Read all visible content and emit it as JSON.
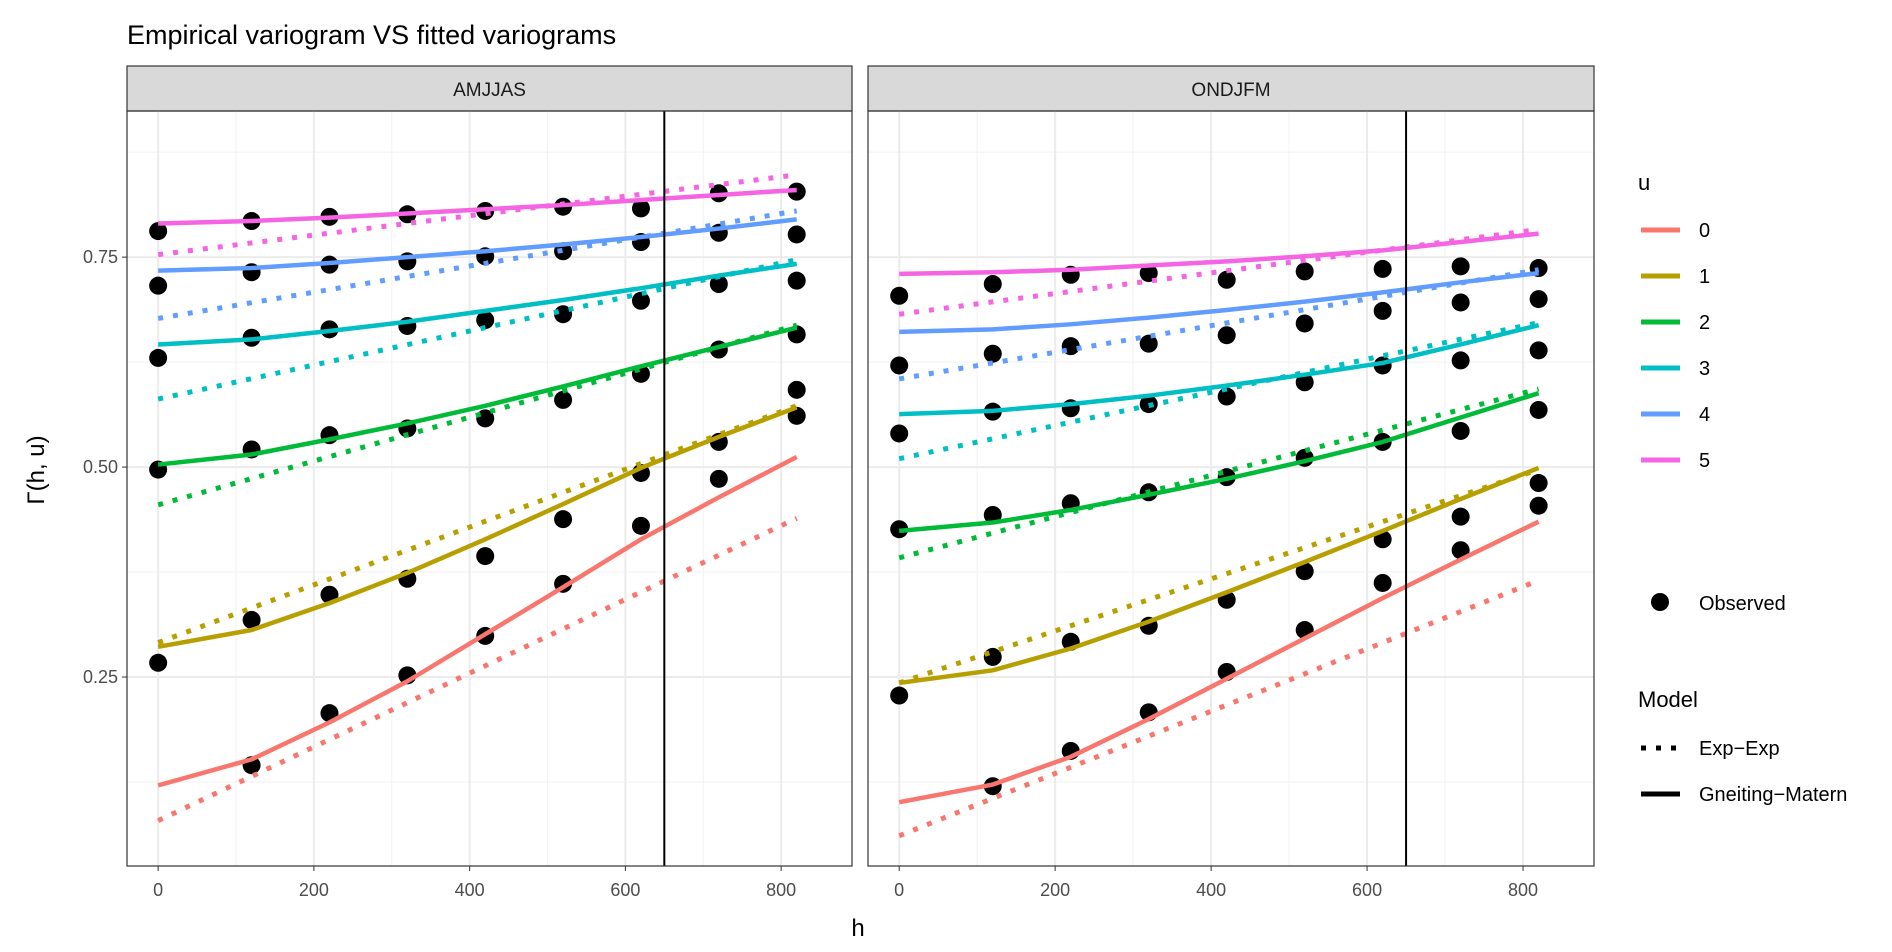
{
  "chart_data": {
    "type": "line",
    "title": "Empirical variogram VS fitted variograms",
    "xlabel": "h",
    "ylabel": "Γ(h, u)",
    "xlim": [
      -40,
      891
    ],
    "ylim": [
      0.025,
      0.924
    ],
    "x_ticks": [
      0,
      200,
      400,
      600,
      800
    ],
    "y_ticks": [
      0.25,
      0.5,
      0.75
    ],
    "y_tick_labels": [
      "0.25",
      "0.50",
      "0.75"
    ],
    "x_tick_labels": [
      "0",
      "200",
      "400",
      "600",
      "800"
    ],
    "grid": true,
    "vertical_reference_line": 650,
    "x": [
      0,
      120,
      220,
      320,
      420,
      520,
      620,
      720,
      820
    ],
    "legend": {
      "placement": "right",
      "color_title": "u",
      "u_levels": [
        "0",
        "1",
        "2",
        "3",
        "4",
        "5"
      ],
      "colors": [
        "#F8766D",
        "#B79F00",
        "#00BA38",
        "#00BFC4",
        "#619CFF",
        "#F564E3"
      ],
      "observed_label": "Observed",
      "model_title": "Model",
      "models": [
        "Exp−Exp",
        "Gneiting−Matern"
      ]
    },
    "panels": [
      {
        "name": "AMJJAS",
        "observed": [
          [
            null,
            0.145,
            0.207,
            0.252,
            0.299,
            0.361,
            0.43,
            0.486,
            0.561
          ],
          [
            0.267,
            0.318,
            0.348,
            0.367,
            0.394,
            0.438,
            0.493,
            0.53,
            0.592
          ],
          [
            0.497,
            0.521,
            0.538,
            0.546,
            0.558,
            0.58,
            0.611,
            0.64,
            0.658
          ],
          [
            0.63,
            0.654,
            0.664,
            0.668,
            0.675,
            0.682,
            0.698,
            0.718,
            0.722
          ],
          [
            0.716,
            0.732,
            0.741,
            0.745,
            0.751,
            0.757,
            0.768,
            0.779,
            0.777
          ],
          [
            0.781,
            0.793,
            0.798,
            0.801,
            0.805,
            0.81,
            0.808,
            0.826,
            0.828
          ]
        ],
        "gneiting_matern": [
          [
            0.121,
            0.152,
            0.196,
            0.245,
            0.301,
            0.357,
            0.414,
            0.464,
            0.512
          ],
          [
            0.286,
            0.306,
            0.338,
            0.374,
            0.414,
            0.456,
            0.499,
            0.536,
            0.571
          ],
          [
            0.503,
            0.515,
            0.533,
            0.552,
            0.573,
            0.596,
            0.62,
            0.643,
            0.666
          ],
          [
            0.646,
            0.652,
            0.662,
            0.673,
            0.686,
            0.699,
            0.713,
            0.728,
            0.742
          ],
          [
            0.734,
            0.737,
            0.743,
            0.75,
            0.757,
            0.765,
            0.774,
            0.784,
            0.795
          ],
          [
            0.79,
            0.793,
            0.797,
            0.802,
            0.807,
            0.812,
            0.818,
            0.824,
            0.83
          ]
        ],
        "exp_exp_x": [
          0,
          820
        ],
        "exp_exp": [
          [
            0.079,
            0.439
          ],
          [
            0.291,
            0.573
          ],
          [
            0.455,
            0.669
          ],
          [
            0.581,
            0.747
          ],
          [
            0.677,
            0.805
          ],
          [
            0.753,
            0.848
          ]
        ]
      },
      {
        "name": "ONDJFM",
        "observed": [
          [
            null,
            0.12,
            0.162,
            0.208,
            0.256,
            0.306,
            0.362,
            0.401,
            0.454
          ],
          [
            0.228,
            0.274,
            0.292,
            0.311,
            0.342,
            0.376,
            0.414,
            0.441,
            0.481
          ],
          [
            0.426,
            0.443,
            0.457,
            0.47,
            0.488,
            0.511,
            0.53,
            0.543,
            0.568
          ],
          [
            0.54,
            0.566,
            0.57,
            0.575,
            0.584,
            0.601,
            0.621,
            0.627,
            0.639
          ],
          [
            0.621,
            0.635,
            0.644,
            0.647,
            0.657,
            0.671,
            0.686,
            0.696,
            0.7
          ],
          [
            0.704,
            0.718,
            0.729,
            0.731,
            0.723,
            0.733,
            0.736,
            0.739,
            0.737
          ]
        ],
        "gneiting_matern": [
          [
            0.101,
            0.122,
            0.155,
            0.2,
            0.248,
            0.296,
            0.344,
            0.39,
            0.435
          ],
          [
            0.243,
            0.258,
            0.284,
            0.316,
            0.351,
            0.387,
            0.424,
            0.462,
            0.499
          ],
          [
            0.424,
            0.434,
            0.449,
            0.467,
            0.486,
            0.507,
            0.53,
            0.559,
            0.588
          ],
          [
            0.563,
            0.567,
            0.575,
            0.585,
            0.597,
            0.61,
            0.624,
            0.646,
            0.669
          ],
          [
            0.661,
            0.664,
            0.67,
            0.678,
            0.687,
            0.697,
            0.708,
            0.72,
            0.731
          ],
          [
            0.73,
            0.732,
            0.735,
            0.74,
            0.745,
            0.751,
            0.758,
            0.768,
            0.778
          ]
        ],
        "exp_exp_x": [
          0,
          820
        ],
        "exp_exp": [
          [
            0.061,
            0.365
          ],
          [
            0.243,
            0.497
          ],
          [
            0.392,
            0.593
          ],
          [
            0.51,
            0.672
          ],
          [
            0.605,
            0.735
          ],
          [
            0.682,
            0.783
          ]
        ]
      }
    ]
  }
}
